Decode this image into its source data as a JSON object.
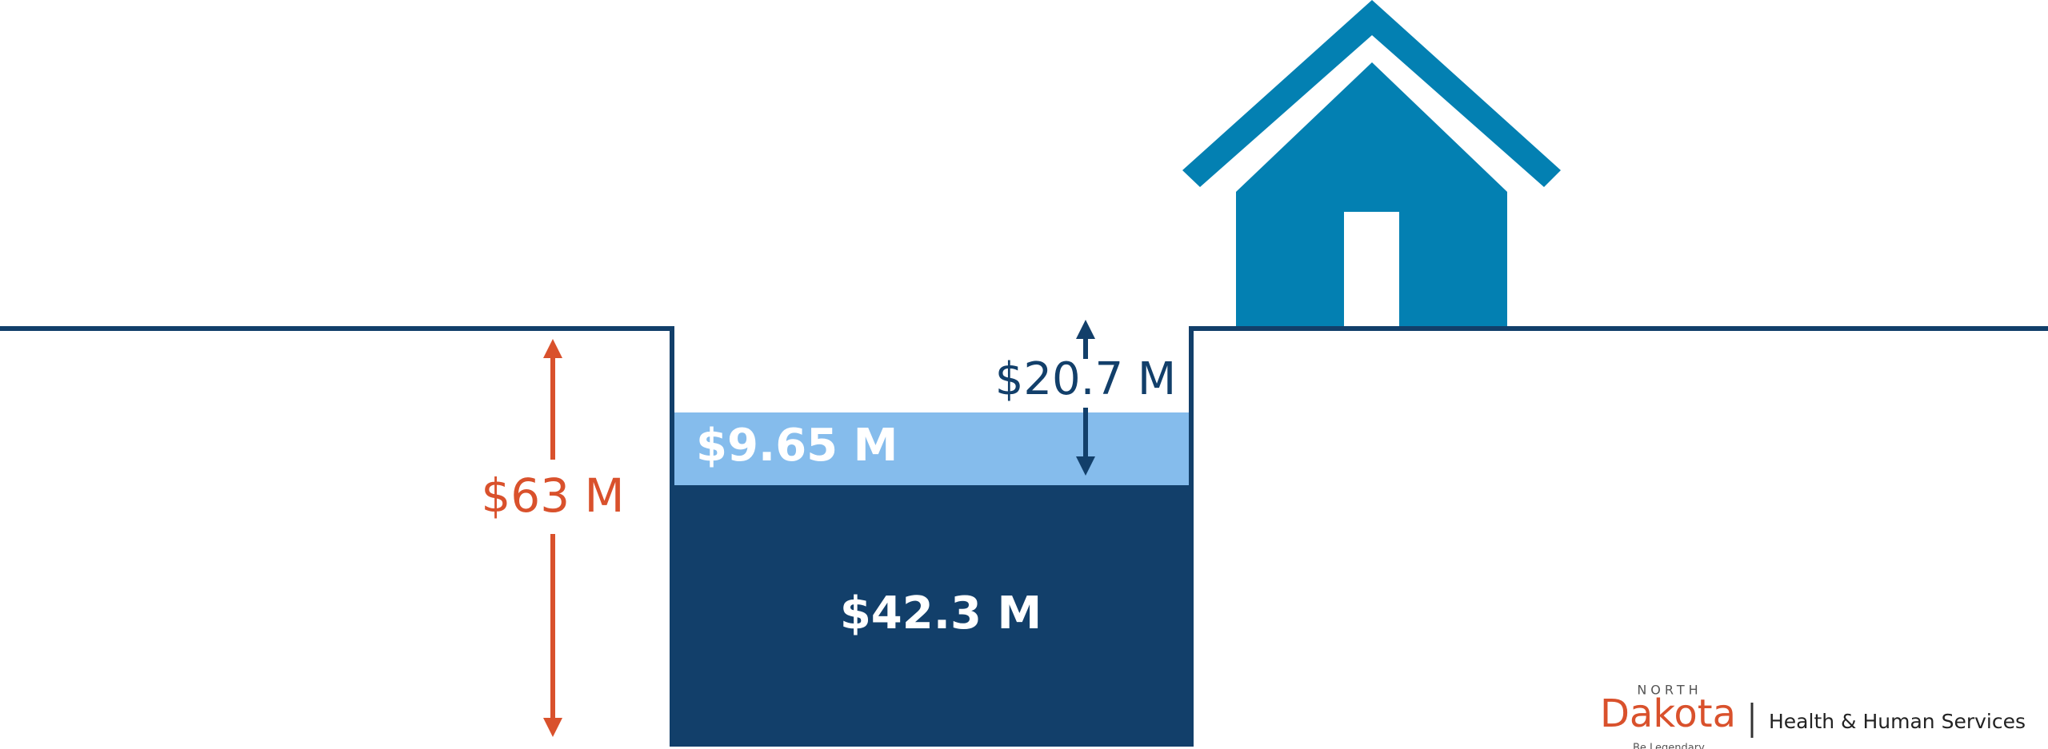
{
  "labels": {
    "total": "$63 M",
    "upper": "$9.65 M",
    "lower": "$42.3 M",
    "gap": "$20.7 M"
  },
  "logo": {
    "state_top": "NORTH",
    "state": "Dakota",
    "agency": "Health & Human Services",
    "tagline": "Be Legendary."
  }
}
